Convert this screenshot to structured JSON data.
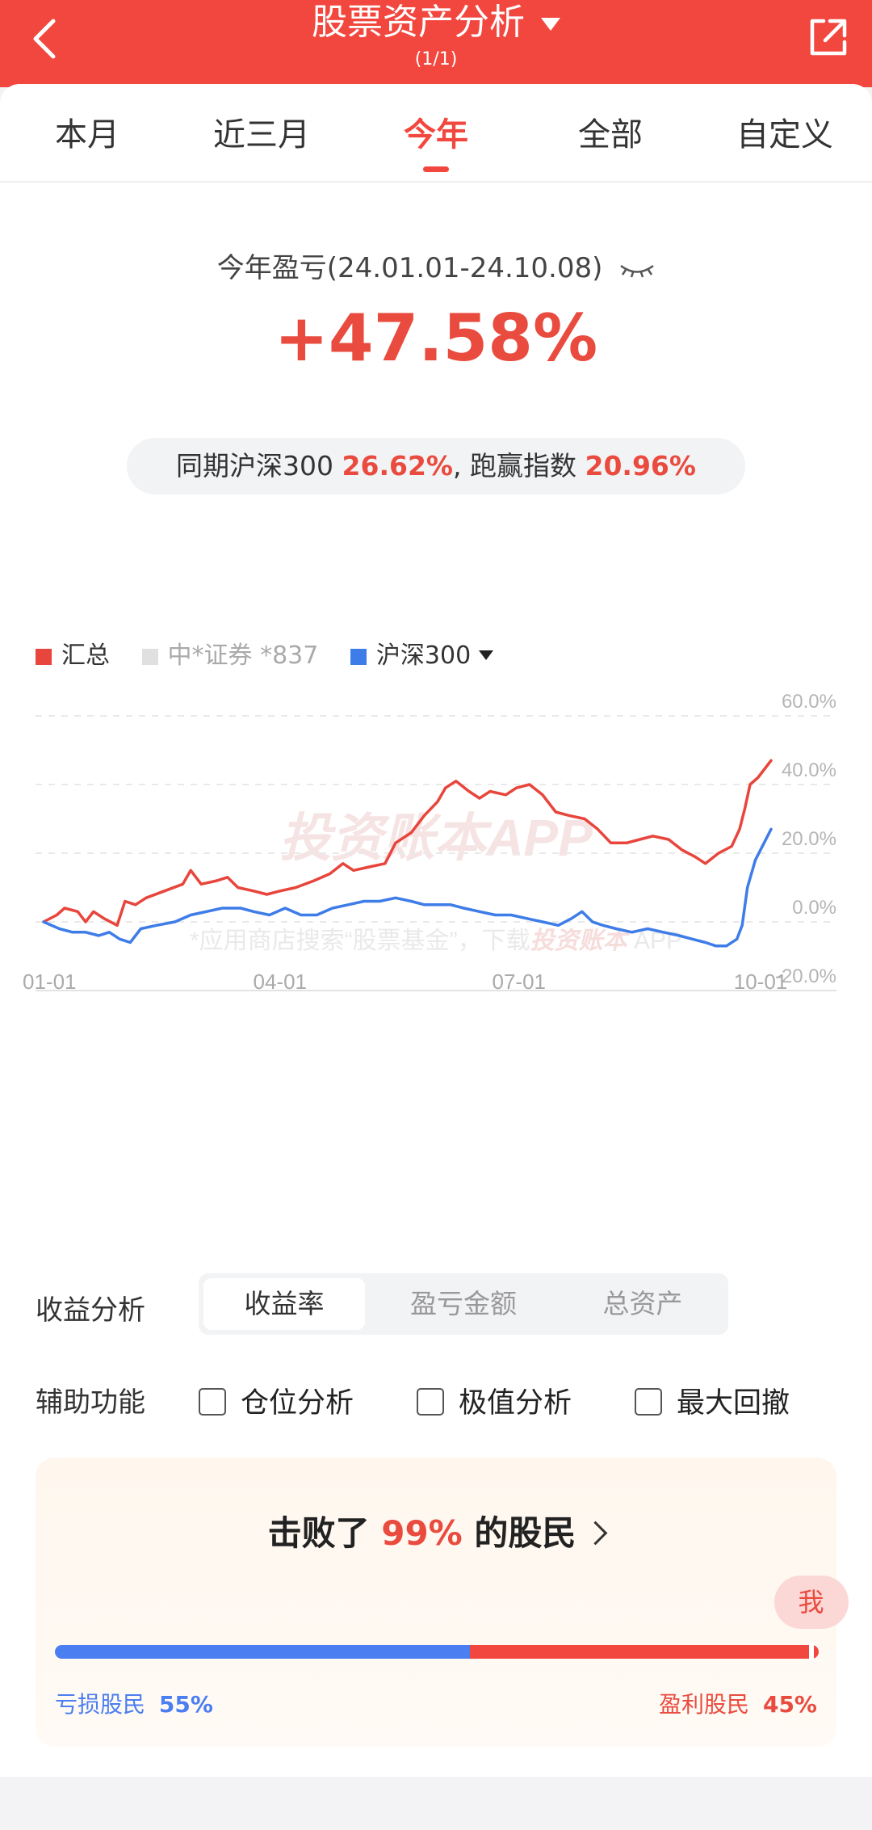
{
  "header": {
    "title": "股票资产分析",
    "subtitle": "(1/1)"
  },
  "tabs": [
    {
      "label": "本月"
    },
    {
      "label": "近三月"
    },
    {
      "label": "今年",
      "active": true
    },
    {
      "label": "全部"
    },
    {
      "label": "自定义"
    }
  ],
  "summary": {
    "label": "今年盈亏(24.01.01-24.10.08)",
    "value": "+47.58%",
    "compare_prefix": "同期沪深300",
    "compare_index": "26.62%",
    "compare_mid": ", 跑赢指数",
    "compare_excess": "20.96%"
  },
  "legend": [
    {
      "label": "汇总",
      "color": "#e8453c"
    },
    {
      "label": "中*证券 *837",
      "color": "#e0e0e0"
    },
    {
      "label": "沪深300",
      "color": "#3e7ce8"
    }
  ],
  "chart_data": {
    "type": "line",
    "y_ticks": [
      "60.0%",
      "40.0%",
      "20.0%",
      "0.0%",
      "-20.0%"
    ],
    "x_ticks": [
      "01-01",
      "04-01",
      "07-01",
      "10-01"
    ],
    "ylim": [
      -20,
      60
    ],
    "watermark": "投资账本APP",
    "footer_note_prefix": "*应用商店搜索“股票基金”，下载",
    "footer_note_brand": "投资账本",
    "footer_note_suffix": "APP",
    "series": [
      {
        "name": "汇总",
        "color": "#e8453c",
        "points": [
          [
            0,
            0
          ],
          [
            5,
            2
          ],
          [
            8,
            4
          ],
          [
            13,
            3
          ],
          [
            16,
            0
          ],
          [
            19,
            3
          ],
          [
            23,
            1
          ],
          [
            28,
            -1
          ],
          [
            31,
            6
          ],
          [
            35,
            5
          ],
          [
            39,
            7
          ],
          [
            46,
            9
          ],
          [
            53,
            11
          ],
          [
            56,
            15
          ],
          [
            60,
            11
          ],
          [
            66,
            12
          ],
          [
            70,
            13
          ],
          [
            74,
            10
          ],
          [
            80,
            9
          ],
          [
            85,
            8
          ],
          [
            90,
            9
          ],
          [
            96,
            10
          ],
          [
            103,
            12
          ],
          [
            109,
            14
          ],
          [
            114,
            17
          ],
          [
            118,
            15
          ],
          [
            124,
            16
          ],
          [
            130,
            17
          ],
          [
            134,
            23
          ],
          [
            140,
            26
          ],
          [
            145,
            31
          ],
          [
            150,
            35
          ],
          [
            153,
            39
          ],
          [
            157,
            41
          ],
          [
            162,
            38
          ],
          [
            166,
            36
          ],
          [
            170,
            38
          ],
          [
            176,
            37
          ],
          [
            180,
            39
          ],
          [
            185,
            40
          ],
          [
            190,
            37
          ],
          [
            195,
            32
          ],
          [
            200,
            31
          ],
          [
            206,
            30
          ],
          [
            211,
            27
          ],
          [
            216,
            23
          ],
          [
            222,
            23
          ],
          [
            227,
            24
          ],
          [
            232,
            25
          ],
          [
            238,
            24
          ],
          [
            243,
            21
          ],
          [
            248,
            19
          ],
          [
            252,
            17
          ],
          [
            257,
            20
          ],
          [
            262,
            22
          ],
          [
            265,
            27
          ],
          [
            267,
            33
          ],
          [
            269,
            40
          ],
          [
            272,
            42
          ],
          [
            277,
            47
          ]
        ]
      },
      {
        "name": "沪深300",
        "color": "#3e7ce8",
        "points": [
          [
            0,
            0
          ],
          [
            6,
            -2
          ],
          [
            11,
            -3
          ],
          [
            16,
            -3
          ],
          [
            21,
            -4
          ],
          [
            25,
            -3
          ],
          [
            29,
            -5
          ],
          [
            33,
            -6
          ],
          [
            37,
            -2
          ],
          [
            43,
            -1
          ],
          [
            50,
            0
          ],
          [
            56,
            2
          ],
          [
            62,
            3
          ],
          [
            68,
            4
          ],
          [
            75,
            4
          ],
          [
            80,
            3
          ],
          [
            86,
            2
          ],
          [
            92,
            4
          ],
          [
            98,
            2
          ],
          [
            104,
            2
          ],
          [
            110,
            4
          ],
          [
            116,
            5
          ],
          [
            122,
            6
          ],
          [
            128,
            6
          ],
          [
            134,
            7
          ],
          [
            140,
            6
          ],
          [
            145,
            5
          ],
          [
            150,
            5
          ],
          [
            155,
            5
          ],
          [
            160,
            4
          ],
          [
            166,
            3
          ],
          [
            172,
            2
          ],
          [
            178,
            2
          ],
          [
            184,
            1
          ],
          [
            190,
            0
          ],
          [
            196,
            -1
          ],
          [
            201,
            1
          ],
          [
            205,
            3
          ],
          [
            209,
            0
          ],
          [
            213,
            -1
          ],
          [
            218,
            -2
          ],
          [
            224,
            -3
          ],
          [
            230,
            -2
          ],
          [
            236,
            -3
          ],
          [
            242,
            -4
          ],
          [
            247,
            -5
          ],
          [
            252,
            -6
          ],
          [
            256,
            -7
          ],
          [
            260,
            -7
          ],
          [
            264,
            -5
          ],
          [
            266,
            -1
          ],
          [
            268,
            10
          ],
          [
            271,
            18
          ],
          [
            277,
            27
          ]
        ]
      }
    ]
  },
  "analysis": {
    "label": "收益分析",
    "options": [
      "收益率",
      "盈亏金额",
      "总资产"
    ],
    "selected": "收益率"
  },
  "aux": {
    "label": "辅助功能",
    "options": [
      "仓位分析",
      "极值分析",
      "最大回撤"
    ]
  },
  "beat": {
    "prefix": "击败了",
    "percent": "99%",
    "suffix": "的股民",
    "me": "我",
    "loss_label": "亏损股民",
    "loss_pct": "55%",
    "gain_label": "盈利股民",
    "gain_pct": "45%",
    "me_percentile": 0.99
  }
}
